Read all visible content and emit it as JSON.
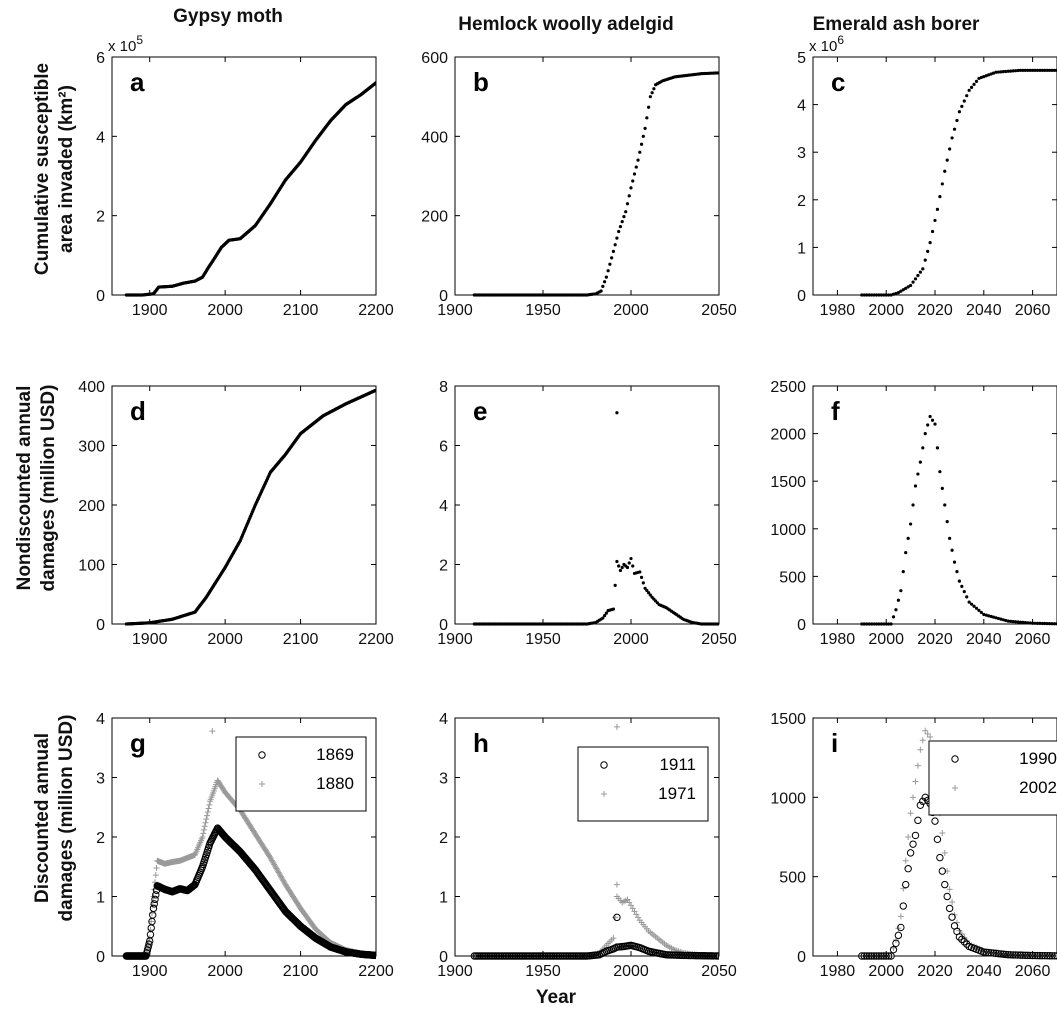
{
  "column_titles": [
    "Gypsy moth",
    "Hemlock woolly adelgid",
    "Emerald ash borer"
  ],
  "row_labels": [
    [
      "Cumulative susceptible",
      "area invaded (km²)"
    ],
    [
      "Nondiscounted annual",
      "damages (million USD)"
    ],
    [
      "Discounted annual",
      "damages (million USD)"
    ]
  ],
  "xlabel": "Year",
  "chart_data": [
    {
      "id": "a",
      "type": "scatter",
      "letter": "a",
      "xlim": [
        1850,
        2200
      ],
      "ylim": [
        0,
        6
      ],
      "y_multiplier": "x 10^5",
      "xticks": [
        1900,
        2000,
        2100,
        2200
      ],
      "yticks": [
        0,
        2,
        4,
        6
      ],
      "curve": [
        [
          1869,
          0
        ],
        [
          1890,
          0
        ],
        [
          1905,
          0.03
        ],
        [
          1912,
          0.2
        ],
        [
          1930,
          0.22
        ],
        [
          1945,
          0.3
        ],
        [
          1960,
          0.35
        ],
        [
          1970,
          0.45
        ],
        [
          1978,
          0.7
        ],
        [
          1985,
          0.9
        ],
        [
          1995,
          1.2
        ],
        [
          2005,
          1.38
        ],
        [
          2020,
          1.42
        ],
        [
          2040,
          1.75
        ],
        [
          2060,
          2.3
        ],
        [
          2080,
          2.9
        ],
        [
          2100,
          3.35
        ],
        [
          2120,
          3.9
        ],
        [
          2140,
          4.4
        ],
        [
          2160,
          4.8
        ],
        [
          2180,
          5.05
        ],
        [
          2200,
          5.35
        ]
      ]
    },
    {
      "id": "b",
      "type": "scatter",
      "letter": "b",
      "xlim": [
        1900,
        2050
      ],
      "ylim": [
        0,
        600
      ],
      "xticks": [
        1900,
        1950,
        2000,
        2050
      ],
      "yticks": [
        0,
        200,
        400,
        600
      ],
      "curve": [
        [
          1911,
          0
        ],
        [
          1975,
          0
        ],
        [
          1980,
          3
        ],
        [
          1983,
          10
        ],
        [
          1986,
          45
        ],
        [
          1990,
          110
        ],
        [
          1993,
          160
        ],
        [
          1997,
          210
        ],
        [
          2000,
          270
        ],
        [
          2004,
          340
        ],
        [
          2008,
          420
        ],
        [
          2011,
          500
        ],
        [
          2014,
          530
        ],
        [
          2018,
          540
        ],
        [
          2025,
          550
        ],
        [
          2040,
          558
        ],
        [
          2050,
          560
        ]
      ]
    },
    {
      "id": "c",
      "type": "scatter",
      "letter": "c",
      "xlim": [
        1970,
        2070
      ],
      "ylim": [
        0,
        5
      ],
      "y_multiplier": "x 10^6",
      "xticks": [
        1980,
        2000,
        2020,
        2040,
        2060
      ],
      "yticks": [
        0,
        1,
        2,
        3,
        4,
        5
      ],
      "curve": [
        [
          1990,
          0
        ],
        [
          2002,
          0
        ],
        [
          2005,
          0.05
        ],
        [
          2010,
          0.2
        ],
        [
          2015,
          0.55
        ],
        [
          2018,
          1.1
        ],
        [
          2021,
          1.8
        ],
        [
          2024,
          2.6
        ],
        [
          2027,
          3.3
        ],
        [
          2030,
          3.85
        ],
        [
          2034,
          4.3
        ],
        [
          2038,
          4.55
        ],
        [
          2045,
          4.68
        ],
        [
          2055,
          4.72
        ],
        [
          2070,
          4.72
        ]
      ]
    },
    {
      "id": "d",
      "type": "scatter",
      "letter": "d",
      "xlim": [
        1850,
        2200
      ],
      "ylim": [
        0,
        400
      ],
      "xticks": [
        1900,
        2000,
        2100,
        2200
      ],
      "yticks": [
        0,
        100,
        200,
        300,
        400
      ],
      "curve": [
        [
          1869,
          0
        ],
        [
          1900,
          2
        ],
        [
          1930,
          8
        ],
        [
          1960,
          20
        ],
        [
          1975,
          45
        ],
        [
          1990,
          75
        ],
        [
          2000,
          95
        ],
        [
          2020,
          140
        ],
        [
          2040,
          200
        ],
        [
          2060,
          255
        ],
        [
          2080,
          285
        ],
        [
          2100,
          320
        ],
        [
          2130,
          350
        ],
        [
          2160,
          370
        ],
        [
          2200,
          393
        ]
      ]
    },
    {
      "id": "e",
      "type": "scatter",
      "letter": "e",
      "xlim": [
        1900,
        2050
      ],
      "ylim": [
        0,
        8
      ],
      "xticks": [
        1900,
        1950,
        2000,
        2050
      ],
      "yticks": [
        0,
        2,
        4,
        6,
        8
      ],
      "curve": [
        [
          1911,
          0
        ],
        [
          1975,
          0
        ],
        [
          1980,
          0.05
        ],
        [
          1984,
          0.2
        ],
        [
          1987,
          0.45
        ],
        [
          1990,
          0.5
        ],
        [
          1992,
          2.1
        ],
        [
          1994,
          1.8
        ],
        [
          1996,
          2.0
        ],
        [
          1998,
          1.9
        ],
        [
          2000,
          2.2
        ],
        [
          2002,
          1.7
        ],
        [
          2005,
          1.75
        ],
        [
          2008,
          1.2
        ],
        [
          2012,
          0.9
        ],
        [
          2016,
          0.65
        ],
        [
          2020,
          0.55
        ],
        [
          2025,
          0.35
        ],
        [
          2030,
          0.15
        ],
        [
          2035,
          0.05
        ],
        [
          2040,
          0
        ],
        [
          2050,
          0
        ]
      ],
      "outliers": [
        [
          1992,
          7.1
        ]
      ]
    },
    {
      "id": "f",
      "type": "scatter",
      "letter": "f",
      "xlim": [
        1970,
        2070
      ],
      "ylim": [
        0,
        2500
      ],
      "xticks": [
        1980,
        2000,
        2020,
        2040,
        2060
      ],
      "yticks": [
        0,
        500,
        1000,
        1500,
        2000,
        2500
      ],
      "curve": [
        [
          1990,
          0
        ],
        [
          2002,
          0
        ],
        [
          2004,
          150
        ],
        [
          2006,
          350
        ],
        [
          2008,
          750
        ],
        [
          2010,
          1050
        ],
        [
          2012,
          1450
        ],
        [
          2014,
          1700
        ],
        [
          2016,
          2000
        ],
        [
          2018,
          2180
        ],
        [
          2020,
          2100
        ],
        [
          2022,
          1600
        ],
        [
          2024,
          1250
        ],
        [
          2026,
          900
        ],
        [
          2028,
          650
        ],
        [
          2030,
          450
        ],
        [
          2034,
          230
        ],
        [
          2040,
          100
        ],
        [
          2050,
          30
        ],
        [
          2060,
          8
        ],
        [
          2070,
          2
        ]
      ]
    },
    {
      "id": "g",
      "type": "scatter",
      "letter": "g",
      "xlim": [
        1850,
        2200
      ],
      "ylim": [
        0,
        4
      ],
      "xticks": [
        1900,
        2000,
        2100,
        2200
      ],
      "yticks": [
        0,
        1,
        2,
        3,
        4
      ],
      "series": [
        {
          "name": "1869",
          "marker": "circle",
          "color": "#000000",
          "curve": [
            [
              1869,
              0
            ],
            [
              1895,
              0
            ],
            [
              1900,
              0.25
            ],
            [
              1905,
              0.8
            ],
            [
              1910,
              1.18
            ],
            [
              1920,
              1.12
            ],
            [
              1930,
              1.08
            ],
            [
              1940,
              1.13
            ],
            [
              1950,
              1.1
            ],
            [
              1960,
              1.2
            ],
            [
              1970,
              1.5
            ],
            [
              1980,
              1.9
            ],
            [
              1990,
              2.15
            ],
            [
              2000,
              2.0
            ],
            [
              2020,
              1.75
            ],
            [
              2040,
              1.45
            ],
            [
              2060,
              1.1
            ],
            [
              2080,
              0.75
            ],
            [
              2100,
              0.5
            ],
            [
              2120,
              0.3
            ],
            [
              2140,
              0.15
            ],
            [
              2160,
              0.07
            ],
            [
              2180,
              0.03
            ],
            [
              2200,
              0.01
            ]
          ]
        },
        {
          "name": "1880",
          "marker": "plus",
          "color": "#9a9a9a",
          "curve": [
            [
              1880,
              0
            ],
            [
              1895,
              0
            ],
            [
              1900,
              0.3
            ],
            [
              1905,
              1.0
            ],
            [
              1910,
              1.6
            ],
            [
              1920,
              1.55
            ],
            [
              1930,
              1.58
            ],
            [
              1940,
              1.6
            ],
            [
              1950,
              1.65
            ],
            [
              1960,
              1.7
            ],
            [
              1970,
              2.0
            ],
            [
              1980,
              2.6
            ],
            [
              1990,
              2.95
            ],
            [
              2000,
              2.75
            ],
            [
              2020,
              2.45
            ],
            [
              2040,
              2.05
            ],
            [
              2060,
              1.65
            ],
            [
              2080,
              1.2
            ],
            [
              2100,
              0.8
            ],
            [
              2120,
              0.45
            ],
            [
              2140,
              0.22
            ],
            [
              2160,
              0.1
            ],
            [
              2180,
              0.04
            ],
            [
              2200,
              0.01
            ]
          ],
          "outliers": [
            [
              1983,
              3.78
            ]
          ]
        }
      ]
    },
    {
      "id": "h",
      "type": "scatter",
      "letter": "h",
      "xlim": [
        1900,
        2050
      ],
      "ylim": [
        0,
        4
      ],
      "xticks": [
        1900,
        1950,
        2000,
        2050
      ],
      "yticks": [
        0,
        1,
        2,
        3,
        4
      ],
      "series": [
        {
          "name": "1911",
          "marker": "circle",
          "color": "#000000",
          "curve": [
            [
              1911,
              0
            ],
            [
              1975,
              0
            ],
            [
              1982,
              0.02
            ],
            [
              1986,
              0.08
            ],
            [
              1990,
              0.12
            ],
            [
              1992,
              0.15
            ],
            [
              1996,
              0.16
            ],
            [
              2000,
              0.18
            ],
            [
              2005,
              0.14
            ],
            [
              2010,
              0.08
            ],
            [
              2015,
              0.05
            ],
            [
              2020,
              0.02
            ],
            [
              2030,
              0.01
            ],
            [
              2050,
              0
            ]
          ],
          "outliers": [
            [
              1992,
              0.65
            ]
          ]
        },
        {
          "name": "1971",
          "marker": "plus",
          "color": "#9a9a9a",
          "curve": [
            [
              1971,
              0
            ],
            [
              1975,
              0
            ],
            [
              1982,
              0.05
            ],
            [
              1986,
              0.18
            ],
            [
              1990,
              0.3
            ],
            [
              1992,
              1.0
            ],
            [
              1995,
              0.9
            ],
            [
              1998,
              0.95
            ],
            [
              2000,
              0.85
            ],
            [
              2005,
              0.6
            ],
            [
              2010,
              0.42
            ],
            [
              2015,
              0.3
            ],
            [
              2020,
              0.18
            ],
            [
              2025,
              0.1
            ],
            [
              2030,
              0.05
            ],
            [
              2040,
              0.01
            ],
            [
              2050,
              0
            ]
          ],
          "outliers": [
            [
              1992,
              3.85
            ],
            [
              1992,
              1.2
            ]
          ]
        }
      ]
    },
    {
      "id": "i",
      "type": "scatter",
      "letter": "i",
      "xlim": [
        1970,
        2070
      ],
      "ylim": [
        0,
        1500
      ],
      "xticks": [
        1980,
        2000,
        2020,
        2040,
        2060
      ],
      "yticks": [
        0,
        500,
        1000,
        1500
      ],
      "series": [
        {
          "name": "1990",
          "marker": "circle",
          "color": "#000000",
          "curve": [
            [
              1990,
              0
            ],
            [
              2002,
              0
            ],
            [
              2004,
              80
            ],
            [
              2006,
              180
            ],
            [
              2008,
              450
            ],
            [
              2010,
              650
            ],
            [
              2012,
              760
            ],
            [
              2014,
              950
            ],
            [
              2016,
              1000
            ],
            [
              2018,
              960
            ],
            [
              2020,
              850
            ],
            [
              2022,
              620
            ],
            [
              2024,
              450
            ],
            [
              2026,
              300
            ],
            [
              2028,
              190
            ],
            [
              2030,
              120
            ],
            [
              2034,
              60
            ],
            [
              2040,
              25
            ],
            [
              2050,
              8
            ],
            [
              2060,
              3
            ],
            [
              2070,
              1
            ]
          ]
        },
        {
          "name": "2002",
          "marker": "plus",
          "color": "#9a9a9a",
          "curve": [
            [
              2002,
              0
            ],
            [
              2004,
              100
            ],
            [
              2006,
              250
            ],
            [
              2008,
              600
            ],
            [
              2010,
              900
            ],
            [
              2012,
              1100
            ],
            [
              2014,
              1300
            ],
            [
              2016,
              1420
            ],
            [
              2018,
              1380
            ],
            [
              2020,
              1200
            ],
            [
              2022,
              900
            ],
            [
              2024,
              650
            ],
            [
              2026,
              420
            ],
            [
              2028,
              260
            ],
            [
              2030,
              160
            ],
            [
              2034,
              75
            ],
            [
              2040,
              30
            ],
            [
              2050,
              10
            ],
            [
              2060,
              3
            ],
            [
              2070,
              1
            ]
          ]
        }
      ]
    }
  ]
}
